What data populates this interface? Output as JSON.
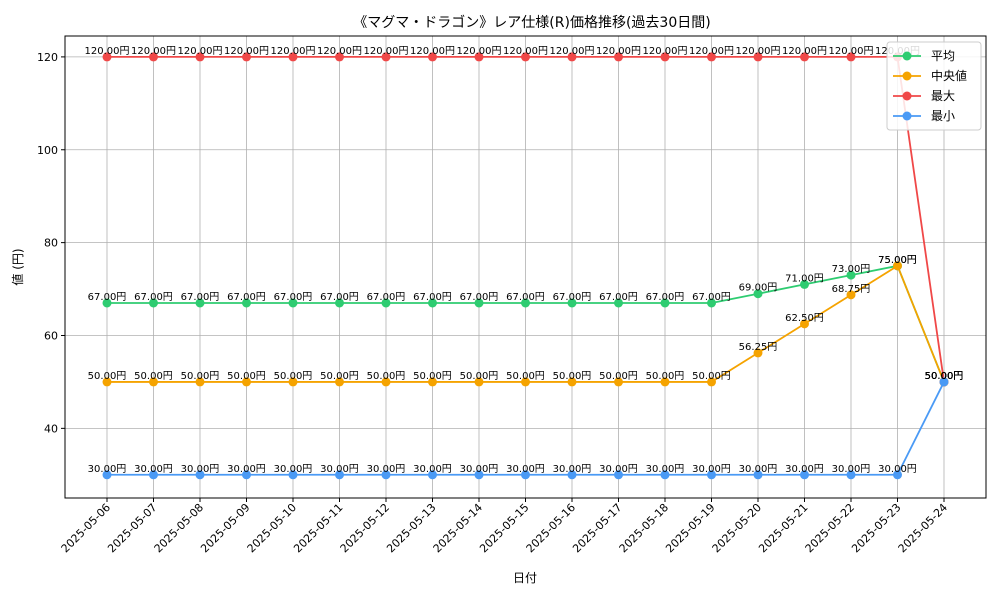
{
  "chart_data": {
    "type": "line",
    "title": "《マグマ・ドラゴン》レア仕様(R)価格推移(過去30日間)",
    "xlabel": "日付",
    "ylabel": "値 (円)",
    "ylim": [
      25,
      124.5
    ],
    "yticks": [
      40,
      60,
      80,
      100,
      120
    ],
    "grid": true,
    "legend_position": "top-right",
    "label_suffix": "円",
    "categories": [
      "2025-05-06",
      "2025-05-07",
      "2025-05-08",
      "2025-05-09",
      "2025-05-10",
      "2025-05-11",
      "2025-05-12",
      "2025-05-13",
      "2025-05-14",
      "2025-05-15",
      "2025-05-16",
      "2025-05-17",
      "2025-05-18",
      "2025-05-19",
      "2025-05-20",
      "2025-05-21",
      "2025-05-22",
      "2025-05-23",
      "2025-05-24"
    ],
    "series": [
      {
        "name": "平均",
        "color": "#2ecc71",
        "values": [
          67,
          67,
          67,
          67,
          67,
          67,
          67,
          67,
          67,
          67,
          67,
          67,
          67,
          67,
          69,
          71,
          73,
          75,
          50
        ]
      },
      {
        "name": "中央値",
        "color": "#f5a300",
        "values": [
          50,
          50,
          50,
          50,
          50,
          50,
          50,
          50,
          50,
          50,
          50,
          50,
          50,
          50,
          56.25,
          62.5,
          68.75,
          75,
          50
        ]
      },
      {
        "name": "最大",
        "color": "#f04848",
        "values": [
          120,
          120,
          120,
          120,
          120,
          120,
          120,
          120,
          120,
          120,
          120,
          120,
          120,
          120,
          120,
          120,
          120,
          120,
          50
        ]
      },
      {
        "name": "最小",
        "color": "#4a9af5",
        "values": [
          30,
          30,
          30,
          30,
          30,
          30,
          30,
          30,
          30,
          30,
          30,
          30,
          30,
          30,
          30,
          30,
          30,
          30,
          50
        ]
      }
    ]
  }
}
